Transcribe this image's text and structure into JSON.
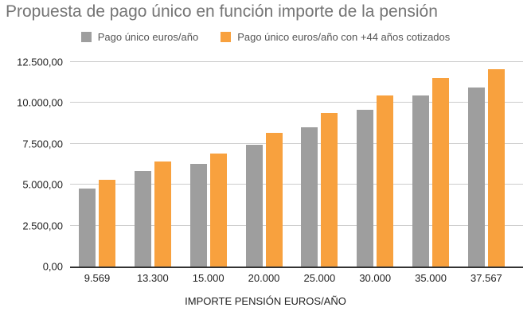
{
  "chart_data": {
    "type": "bar",
    "title": "Propuesta de pago único en función importe de la pensión",
    "xlabel": "IMPORTE PENSIÓN EUROS/AÑO",
    "ylabel": "",
    "ylim": [
      0,
      12500
    ],
    "grid": true,
    "legend_position": "top",
    "categories": [
      "9.569",
      "13.300",
      "15.000",
      "20.000",
      "25.000",
      "30.000",
      "35.000",
      "37.567"
    ],
    "series": [
      {
        "name": "Pago único euros/año",
        "color": "#9e9e9e",
        "values": [
          4780,
          5860,
          6260,
          7460,
          8520,
          9570,
          10450,
          10950
        ]
      },
      {
        "name": "Pago único euros/año con +44 años cotizados",
        "color": "#f8a13e",
        "values": [
          5300,
          6440,
          6930,
          8160,
          9410,
          10450,
          11550,
          12060
        ]
      }
    ],
    "y_ticks": [
      {
        "label": "12.500,00",
        "value": 12500
      },
      {
        "label": "10.000,00",
        "value": 10000
      },
      {
        "label": "7.500,00",
        "value": 7500
      },
      {
        "label": "5.000,00",
        "value": 5000
      },
      {
        "label": "2.500,00",
        "value": 2500
      },
      {
        "label": "0,00",
        "value": 0
      }
    ]
  },
  "colors": {
    "gridline": "#cccccc",
    "axis_line": "#333333",
    "title_text": "#757575",
    "legend_text": "#555555",
    "axis_text": "#222222",
    "background": "#ffffff"
  }
}
